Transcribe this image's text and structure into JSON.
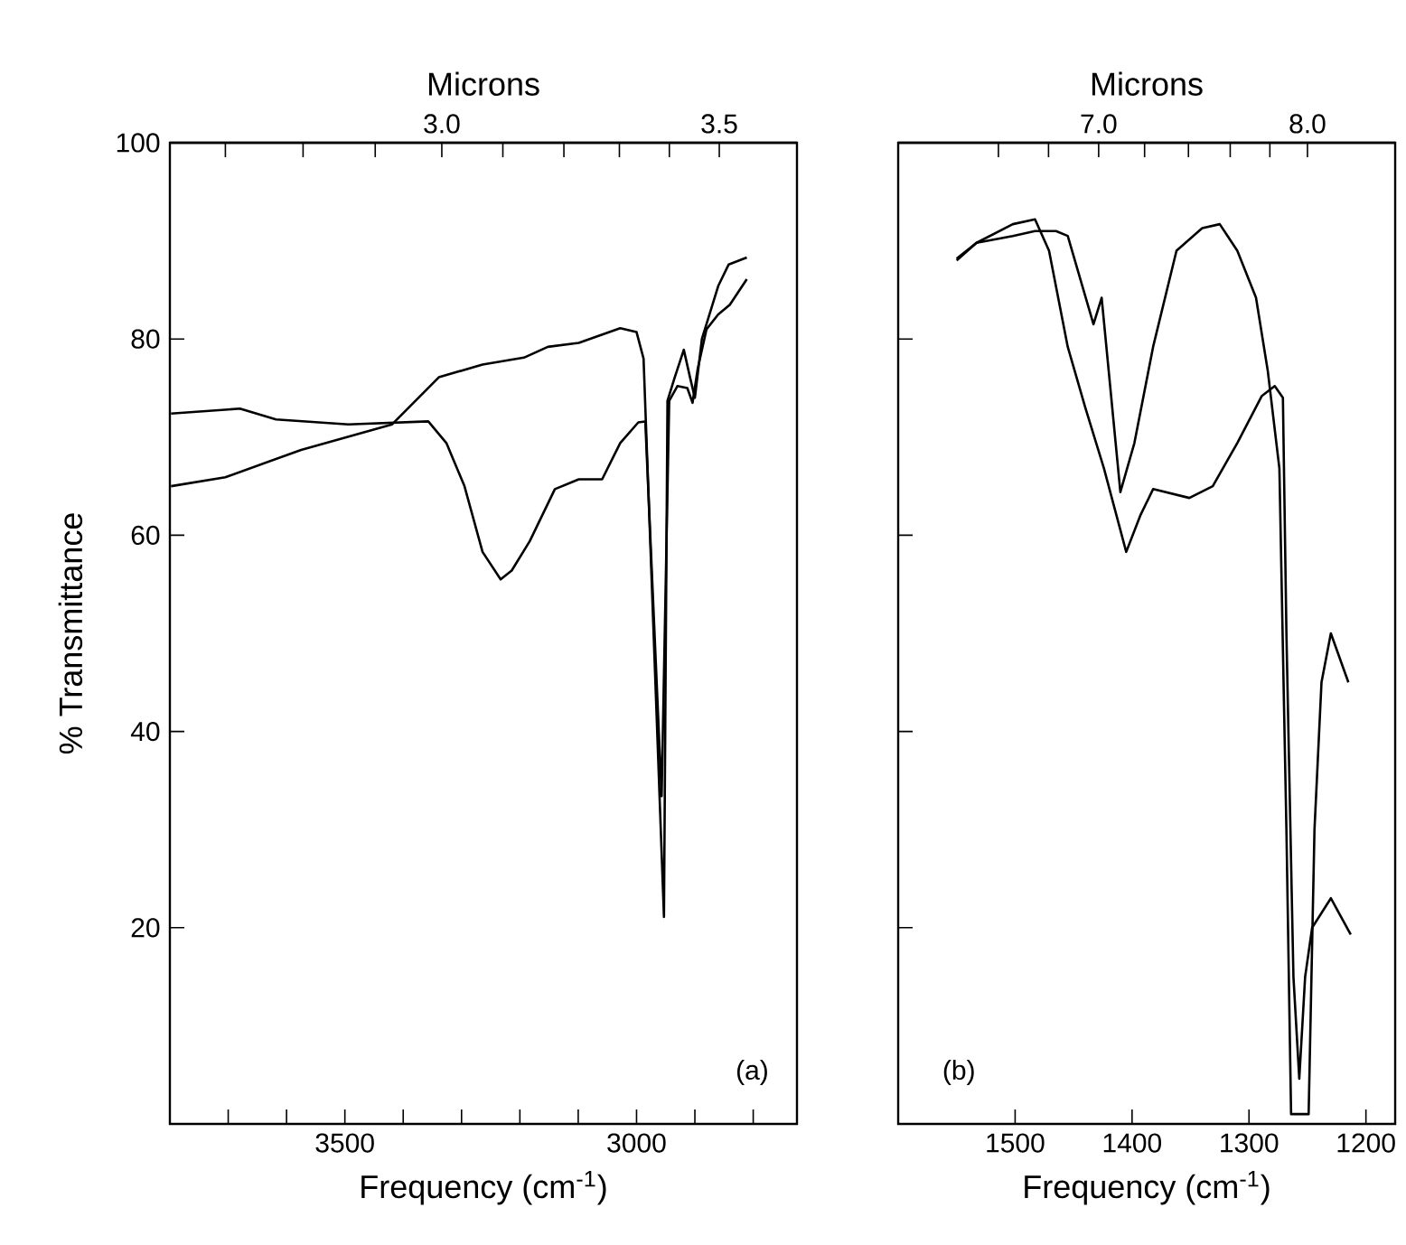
{
  "chart_data": [
    {
      "type": "line",
      "xlabel": "Frequency (cm$^{-1}$)",
      "ylabel": "% Transmittance",
      "x2label": "Microns",
      "xlim": [
        3800,
        2725
      ],
      "ylim": [
        0,
        100
      ],
      "xticks": [
        {
          "value": 3700,
          "label": null
        },
        {
          "value": 3600,
          "label": null
        },
        3500,
        {
          "value": 3400,
          "label": null
        },
        {
          "value": 3300,
          "label": null
        },
        {
          "value": 3200,
          "label": null
        },
        {
          "value": 3100,
          "label": null
        },
        3000,
        {
          "value": 2900,
          "label": null
        },
        {
          "value": 2800,
          "label": null
        }
      ],
      "yticks": [
        20,
        40,
        60,
        80,
        100
      ],
      "x2lim": [
        2.51,
        3.64
      ],
      "x2ticks": [
        {
          "value": 2.61,
          "label": null
        },
        {
          "value": 2.75,
          "label": null
        },
        {
          "value": 2.88,
          "label": null
        },
        {
          "value": 3.0,
          "label": "3.0"
        },
        {
          "value": 3.11,
          "label": null
        },
        {
          "value": 3.22,
          "label": null
        },
        {
          "value": 3.32,
          "label": null
        },
        {
          "value": 3.41,
          "label": null
        },
        {
          "value": 3.5,
          "label": "3.5"
        }
      ],
      "annotations": [
        "(a)"
      ],
      "series": [
        {
          "color": "#000000",
          "x": [
            3798,
            3680,
            3618,
            3494,
            3357,
            3326,
            3295,
            3264,
            3233,
            3214,
            3183,
            3140,
            3099,
            3059,
            3028,
            2997,
            2985,
            2957,
            2944,
            2930,
            2913,
            2904,
            2895,
            2880,
            2860,
            2840,
            2811
          ],
          "values": [
            72.4,
            72.9,
            71.8,
            71.3,
            71.6,
            69.4,
            65,
            58.3,
            55.5,
            56.4,
            59.4,
            64.7,
            65.7,
            65.7,
            69.4,
            71.5,
            71.6,
            33.4,
            73.7,
            75.2,
            75.0,
            73.5,
            77,
            81,
            82.5,
            83.5,
            86.1
          ]
        },
        {
          "color": "#000000",
          "x": [
            3798,
            3705,
            3575,
            3419,
            3339,
            3264,
            3193,
            3152,
            3099,
            3028,
            3000,
            2988,
            2953,
            2947,
            2935,
            2919,
            2908,
            2900,
            2888,
            2860,
            2842,
            2811
          ],
          "values": [
            65,
            65.9,
            68.7,
            71.3,
            76.1,
            77.4,
            78.1,
            79.2,
            79.6,
            81.1,
            80.7,
            78,
            21.1,
            73.7,
            76,
            78.9,
            76,
            74,
            80,
            85.4,
            87.6,
            88.3
          ]
        }
      ]
    },
    {
      "type": "line",
      "xlabel": "Frequency (cm$^{-1}$)",
      "x2label": "Microns",
      "xlim": [
        1600,
        1175
      ],
      "ylim": [
        0,
        100
      ],
      "xticks": [
        1500,
        1400,
        1300,
        1200
      ],
      "yticks": [
        20,
        40,
        60,
        80
      ],
      "tick_labels": "x",
      "x2lim": [
        6.04,
        8.42
      ],
      "x2ticks": [
        {
          "value": 6.52,
          "label": null
        },
        {
          "value": 6.76,
          "label": null
        },
        {
          "value": 7.0,
          "label": "7.0"
        },
        {
          "value": 7.22,
          "label": null
        },
        {
          "value": 7.43,
          "label": null
        },
        {
          "value": 7.63,
          "label": null
        },
        {
          "value": 7.82,
          "label": null
        },
        {
          "value": 8.0,
          "label": "8.0"
        }
      ],
      "annotations": [
        "(b)"
      ],
      "series": [
        {
          "color": "#000000",
          "x": [
            1550,
            1533,
            1502,
            1483,
            1465,
            1455,
            1433,
            1426,
            1410,
            1398,
            1382,
            1362,
            1340,
            1325,
            1310,
            1294,
            1284,
            1274,
            1268,
            1264,
            1249,
            1244,
            1238,
            1230,
            1215
          ],
          "values": [
            88.2,
            89.8,
            90.5,
            91,
            91,
            90.5,
            81.5,
            84.2,
            64.4,
            69.4,
            79.2,
            89,
            91.3,
            91.7,
            89,
            84.2,
            76.8,
            66.8,
            30,
            1,
            1,
            30,
            45,
            50,
            45
          ]
        },
        {
          "color": "#000000",
          "x": [
            1550,
            1533,
            1502,
            1483,
            1471,
            1455,
            1440,
            1424,
            1405,
            1393,
            1382,
            1351,
            1331,
            1310,
            1289,
            1278,
            1271,
            1268,
            1262,
            1257,
            1252,
            1246,
            1230,
            1213
          ],
          "values": [
            88,
            89.8,
            91.7,
            92.2,
            89,
            79.2,
            73,
            66.8,
            58.3,
            62,
            64.7,
            63.8,
            65,
            69.4,
            74.2,
            75.2,
            74,
            50,
            15,
            4.6,
            15,
            20,
            23,
            19.3
          ]
        }
      ]
    }
  ]
}
